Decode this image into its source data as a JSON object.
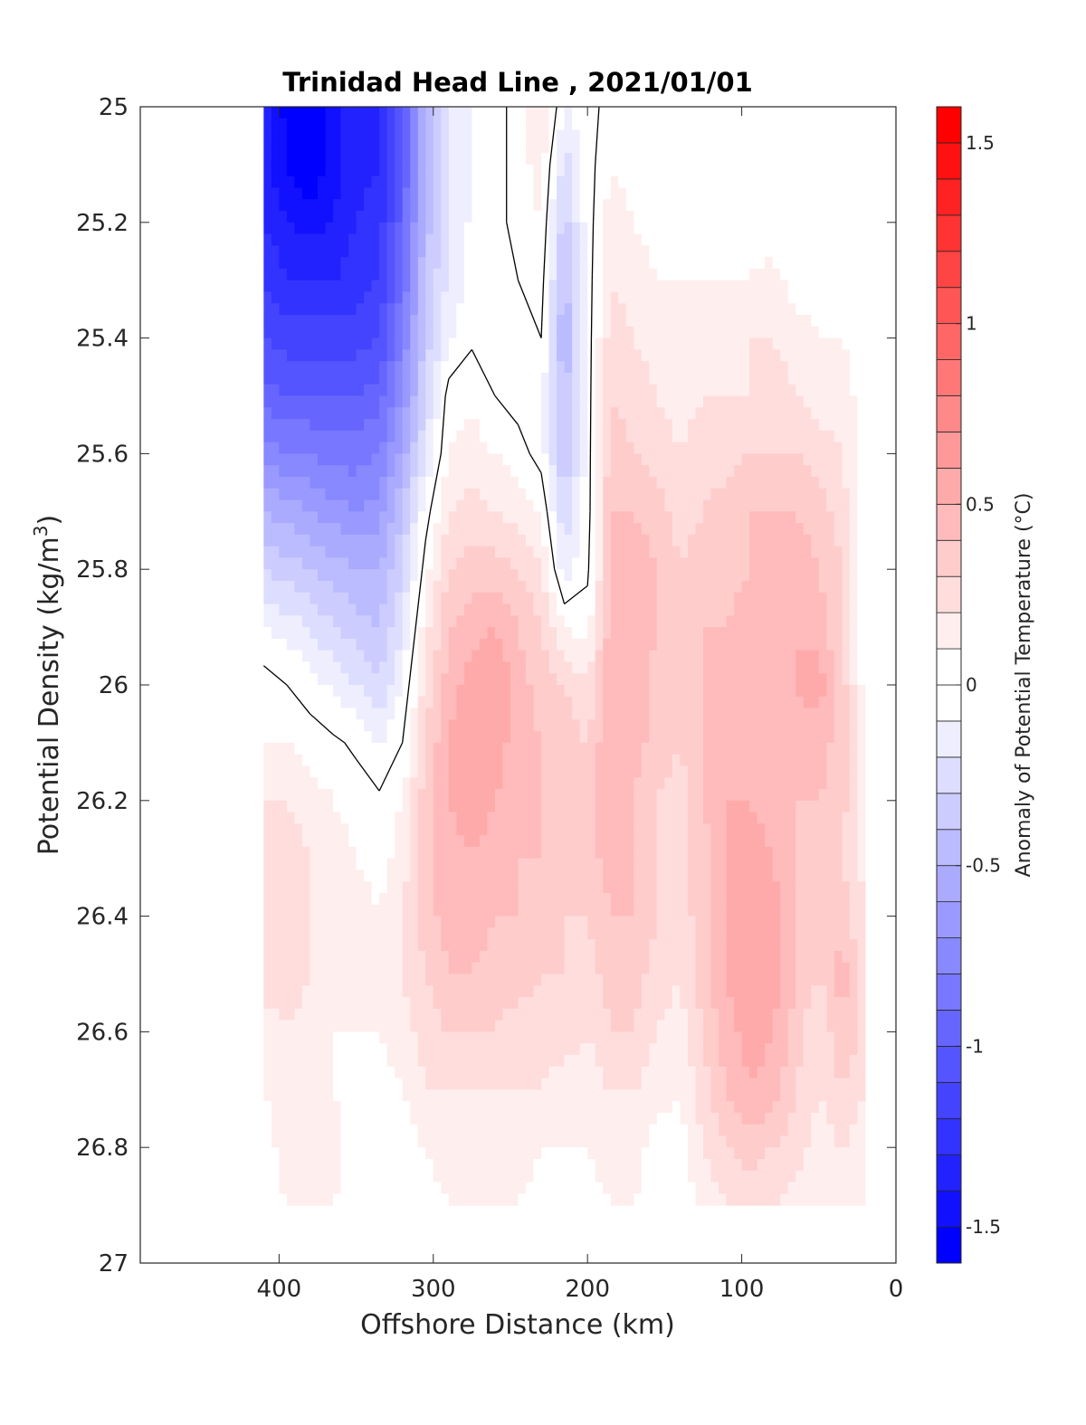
{
  "chart_data": {
    "type": "heatmap",
    "subtype": "filled-contour",
    "title": "Trinidad Head Line , 2021/01/01",
    "xlabel": "Offshore Distance (km)",
    "ylabel_main": "Potential Density (kg/m",
    "ylabel_sup": "3",
    "ylabel_close": ")",
    "colorbar_label": "Anomaly of Potential Temperature (°C)",
    "xlim": [
      490,
      0
    ],
    "x_reversed": true,
    "ylim": [
      25,
      27
    ],
    "y_reversed": true,
    "x_ticks": [
      400,
      300,
      200,
      100,
      0
    ],
    "x_tick_labels": [
      "400",
      "300",
      "200",
      "100",
      "0"
    ],
    "y_ticks": [
      25,
      25.2,
      25.4,
      25.6,
      25.8,
      26,
      26.2,
      26.4,
      26.6,
      26.8,
      27
    ],
    "y_tick_labels": [
      "25",
      "25.2",
      "25.4",
      "25.6",
      "25.8",
      "26",
      "26.2",
      "26.4",
      "26.6",
      "26.8",
      "27"
    ],
    "colorbar_range": [
      -1.6,
      1.6
    ],
    "colorbar_step": 0.1,
    "colorbar_ticks": [
      1.5,
      1,
      0.5,
      0,
      -0.5,
      -1,
      -1.5
    ],
    "colorbar_tick_labels": [
      "1.5",
      "1",
      "0.5",
      "0",
      "-0.5",
      "-1",
      "-1.5"
    ],
    "colormap": {
      "negative": "#0000ff",
      "zero": "#ffffff",
      "positive": "#ff0000"
    },
    "grid": false,
    "data_extent": {
      "x": [
        410,
        20
      ],
      "y": [
        25,
        26.9
      ]
    },
    "x": [
      410,
      395,
      380,
      365,
      350,
      335,
      320,
      305,
      290,
      275,
      260,
      245,
      230,
      215,
      200,
      185,
      170,
      155,
      140,
      125,
      110,
      95,
      80,
      65,
      50,
      35,
      20
    ],
    "y": [
      25,
      25.1,
      25.2,
      25.3,
      25.4,
      25.5,
      25.6,
      25.7,
      25.8,
      25.9,
      26,
      26.1,
      26.2,
      26.3,
      26.4,
      26.5,
      26.6,
      26.7,
      26.8,
      26.9
    ],
    "z": [
      [
        -1.3,
        -1.55,
        -1.55,
        -1.45,
        -1.35,
        -1.3,
        -1.0,
        -0.5,
        -0.2,
        -0.1,
        -0.05,
        0.05,
        0.2,
        -0.1,
        -0.05,
        0.05,
        0.0,
        0.0,
        0.0,
        0.0,
        0.0,
        0.0,
        0.0,
        0.0,
        0.0,
        0.0,
        0.0
      ],
      [
        -1.35,
        -1.5,
        -1.6,
        -1.45,
        -1.35,
        -1.3,
        -1.0,
        -0.5,
        -0.2,
        -0.1,
        -0.05,
        0.05,
        0.15,
        -0.25,
        -0.05,
        0.1,
        0.05,
        0.0,
        0.0,
        0.0,
        0.0,
        0.0,
        0.0,
        0.0,
        0.0,
        0.0,
        0.0
      ],
      [
        -1.3,
        -1.4,
        -1.45,
        -1.4,
        -1.3,
        -1.25,
        -0.95,
        -0.45,
        -0.2,
        -0.08,
        -0.05,
        0.05,
        0.1,
        -0.35,
        -0.05,
        0.15,
        0.1,
        0.05,
        0.0,
        0.0,
        0.0,
        0.05,
        0.0,
        0.0,
        0.0,
        0.0,
        0.0
      ],
      [
        -1.2,
        -1.3,
        -1.3,
        -1.3,
        -1.25,
        -1.2,
        -0.9,
        -0.4,
        -0.18,
        -0.05,
        -0.03,
        0.0,
        0.05,
        -0.45,
        -0.05,
        0.2,
        0.15,
        0.1,
        0.1,
        0.1,
        0.1,
        0.1,
        0.15,
        0.05,
        0.05,
        0.05,
        0.0
      ],
      [
        -1.1,
        -1.15,
        -1.15,
        -1.15,
        -1.15,
        -1.1,
        -0.8,
        -0.35,
        -0.12,
        -0.02,
        -0.02,
        -0.05,
        0.0,
        -0.5,
        -0.05,
        0.25,
        0.2,
        0.15,
        0.12,
        0.15,
        0.15,
        0.2,
        0.2,
        0.15,
        0.1,
        0.1,
        0.05
      ],
      [
        -0.95,
        -1.0,
        -1.0,
        -1.0,
        -1.0,
        -0.95,
        -0.7,
        -0.3,
        0.05,
        0.08,
        0.0,
        -0.05,
        -0.05,
        -0.45,
        -0.05,
        0.3,
        0.25,
        0.2,
        0.15,
        0.2,
        0.2,
        0.2,
        0.25,
        0.2,
        0.15,
        0.15,
        0.05
      ],
      [
        -0.75,
        -0.8,
        -0.8,
        -0.85,
        -0.85,
        -0.8,
        -0.55,
        -0.2,
        0.1,
        0.15,
        0.1,
        0.05,
        -0.05,
        -0.4,
        -0.05,
        0.35,
        0.3,
        0.25,
        0.2,
        0.25,
        0.25,
        0.3,
        0.3,
        0.3,
        0.25,
        0.2,
        0.05
      ],
      [
        -0.5,
        -0.55,
        -0.6,
        -0.65,
        -0.7,
        -0.65,
        -0.4,
        -0.05,
        0.2,
        0.25,
        0.2,
        0.15,
        0.1,
        -0.3,
        -0.05,
        0.4,
        0.4,
        0.35,
        0.25,
        0.3,
        0.35,
        0.4,
        0.4,
        0.4,
        0.35,
        0.25,
        0.05
      ],
      [
        -0.3,
        -0.35,
        -0.4,
        -0.45,
        -0.5,
        -0.5,
        -0.3,
        0.05,
        0.3,
        0.35,
        0.35,
        0.3,
        0.2,
        -0.15,
        -0.02,
        0.4,
        0.45,
        0.4,
        0.3,
        0.35,
        0.35,
        0.4,
        0.45,
        0.45,
        0.4,
        0.3,
        0.05
      ],
      [
        -0.1,
        -0.15,
        -0.2,
        -0.3,
        -0.35,
        -0.4,
        -0.2,
        0.15,
        0.4,
        0.45,
        0.5,
        0.4,
        0.3,
        0.1,
        0.05,
        0.45,
        0.5,
        0.4,
        0.3,
        0.4,
        0.4,
        0.45,
        0.5,
        0.5,
        0.45,
        0.3,
        0.05
      ],
      [
        0.05,
        0.0,
        -0.05,
        -0.12,
        -0.2,
        -0.3,
        -0.1,
        0.25,
        0.45,
        0.55,
        0.6,
        0.45,
        0.35,
        0.3,
        0.2,
        0.5,
        0.5,
        0.35,
        0.3,
        0.4,
        0.45,
        0.5,
        0.45,
        0.5,
        0.55,
        0.35,
        0.05
      ],
      [
        0.1,
        0.1,
        0.05,
        0.02,
        -0.02,
        -0.1,
        0.0,
        0.3,
        0.5,
        0.6,
        0.55,
        0.45,
        0.4,
        0.35,
        0.3,
        0.5,
        0.45,
        0.35,
        0.3,
        0.4,
        0.45,
        0.5,
        0.45,
        0.45,
        0.45,
        0.35,
        0.1
      ],
      [
        0.2,
        0.2,
        0.15,
        0.1,
        0.05,
        0.02,
        0.1,
        0.35,
        0.5,
        0.55,
        0.5,
        0.45,
        0.4,
        0.35,
        0.35,
        0.45,
        0.4,
        0.3,
        0.25,
        0.4,
        0.5,
        0.5,
        0.45,
        0.4,
        0.4,
        0.35,
        0.1
      ],
      [
        0.3,
        0.25,
        0.2,
        0.15,
        0.1,
        0.05,
        0.15,
        0.35,
        0.45,
        0.5,
        0.45,
        0.4,
        0.4,
        0.35,
        0.35,
        0.45,
        0.4,
        0.3,
        0.25,
        0.35,
        0.5,
        0.55,
        0.5,
        0.4,
        0.35,
        0.3,
        0.15
      ],
      [
        0.3,
        0.25,
        0.2,
        0.15,
        0.15,
        0.1,
        0.2,
        0.35,
        0.45,
        0.45,
        0.4,
        0.4,
        0.35,
        0.3,
        0.3,
        0.4,
        0.4,
        0.3,
        0.25,
        0.35,
        0.5,
        0.6,
        0.55,
        0.4,
        0.3,
        0.35,
        0.2
      ],
      [
        0.25,
        0.25,
        0.2,
        0.15,
        0.15,
        0.1,
        0.2,
        0.3,
        0.4,
        0.4,
        0.35,
        0.35,
        0.3,
        0.3,
        0.25,
        0.35,
        0.35,
        0.25,
        0.2,
        0.35,
        0.5,
        0.6,
        0.55,
        0.4,
        0.3,
        0.45,
        0.25
      ],
      [
        0.15,
        0.2,
        0.15,
        0.1,
        0.1,
        0.1,
        0.15,
        0.25,
        0.3,
        0.3,
        0.3,
        0.25,
        0.25,
        0.25,
        0.2,
        0.3,
        0.3,
        0.2,
        0.15,
        0.3,
        0.45,
        0.55,
        0.5,
        0.35,
        0.2,
        0.4,
        0.25
      ],
      [
        0.1,
        0.15,
        0.15,
        0.1,
        0.05,
        0.05,
        0.1,
        0.2,
        0.2,
        0.2,
        0.2,
        0.2,
        0.2,
        0.15,
        0.15,
        0.2,
        0.2,
        0.15,
        0.1,
        0.25,
        0.4,
        0.5,
        0.45,
        0.3,
        0.2,
        0.3,
        0.2
      ],
      [
        0.05,
        0.15,
        0.2,
        0.15,
        0.05,
        0.0,
        0.05,
        0.1,
        0.15,
        0.15,
        0.15,
        0.15,
        0.1,
        0.1,
        0.1,
        0.15,
        0.15,
        0.05,
        0.05,
        0.2,
        0.3,
        0.35,
        0.3,
        0.25,
        0.15,
        0.2,
        0.15
      ],
      [
        0.05,
        0.1,
        0.15,
        0.1,
        0.05,
        0.0,
        0.0,
        0.05,
        0.1,
        0.1,
        0.1,
        0.1,
        0.05,
        0.05,
        0.05,
        0.1,
        0.1,
        0.05,
        0.05,
        0.1,
        0.2,
        0.25,
        0.2,
        0.15,
        0.1,
        0.1,
        0.1
      ]
    ]
  }
}
